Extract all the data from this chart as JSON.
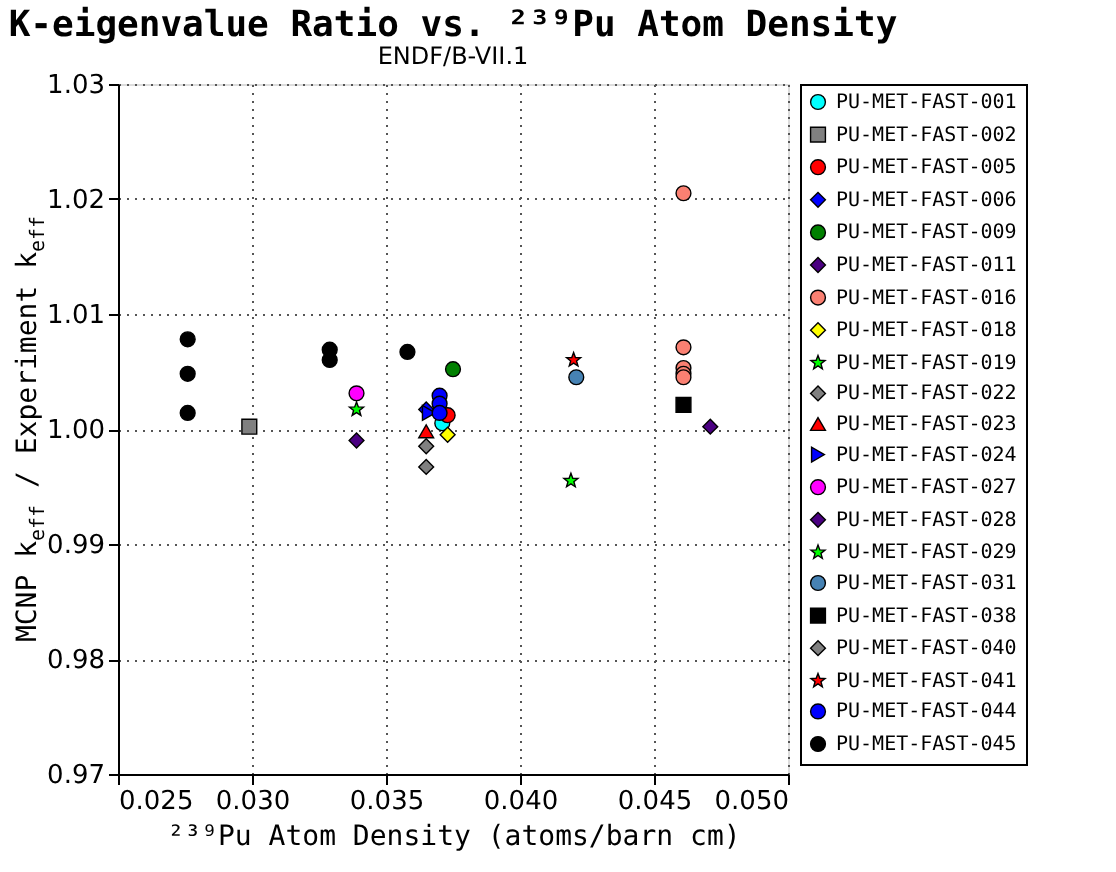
{
  "chart_data": {
    "type": "scatter",
    "title": "K-eigenvalue Ratio vs. ²³⁹Pu Atom Density",
    "subtitle": "ENDF/B-VII.1",
    "xlabel": "²³⁹Pu Atom Density (atoms/barn cm)",
    "ylabel": "MCNP k$_{eff}$ / Experiment k$_{eff}$",
    "xlim": [
      0.025,
      0.05
    ],
    "xticks": [
      0.025,
      {
        "value": 0.03,
        "label": "0.030"
      },
      0.035,
      {
        "value": 0.04,
        "label": "0.040"
      },
      0.045,
      {
        "value": 0.05,
        "label": "0.050"
      }
    ],
    "ylim": [
      0.97,
      1.03
    ],
    "yticks": [
      0.97,
      0.98,
      0.99,
      {
        "value": 1.0,
        "label": "1.00"
      },
      1.01,
      1.02,
      1.03
    ],
    "grid": true,
    "legend": "right",
    "series": [
      {
        "name": "PU-MET-FAST-001",
        "color": "#00ffff",
        "marker": "circle",
        "x": [
          0.0371
        ],
        "values": [
          1.0005
        ]
      },
      {
        "name": "PU-MET-FAST-002",
        "color": "#808080",
        "marker": "square",
        "x": [
          0.0299
        ],
        "values": [
          1.0002
        ]
      },
      {
        "name": "PU-MET-FAST-005",
        "color": "#ff0000",
        "x": [
          0.0373
        ],
        "values": [
          1.0012
        ]
      },
      {
        "name": "PU-MET-FAST-006",
        "color": "#0000ff",
        "marker": "diamond",
        "x": [
          0.0365
        ],
        "values": [
          1.0017
        ]
      },
      {
        "name": "PU-MET-FAST-009",
        "color": "#008000",
        "x": [
          0.0375
        ],
        "values": [
          1.0052
        ]
      },
      {
        "name": "PU-MET-FAST-011",
        "color": "#4b0082",
        "marker": "diamond",
        "x": [
          0.0471
        ],
        "values": [
          1.0002
        ]
      },
      {
        "name": "PU-MET-FAST-016",
        "color": "#fa8072",
        "x": [
          0.0461,
          0.0461,
          0.0461,
          0.0461,
          0.0461
        ],
        "values": [
          1.0205,
          1.0071,
          1.0053,
          1.0048,
          1.0045
        ]
      },
      {
        "name": "PU-MET-FAST-018",
        "color": "#ffff00",
        "marker": "diamond",
        "x": [
          0.0373
        ],
        "values": [
          0.9995
        ]
      },
      {
        "name": "PU-MET-FAST-019",
        "color": "#00ff00",
        "marker": "star",
        "x": [
          0.0339
        ],
        "values": [
          1.0017
        ]
      },
      {
        "name": "PU-MET-FAST-022",
        "color": "#808080",
        "marker": "diamond",
        "x": [
          0.0365
        ],
        "values": [
          0.9985
        ]
      },
      {
        "name": "PU-MET-FAST-023",
        "color": "#ff0000",
        "marker": "triangle",
        "x": [
          0.0365
        ],
        "values": [
          0.9998
        ]
      },
      {
        "name": "PU-MET-FAST-024",
        "color": "#0000ff",
        "marker": "triangle-right",
        "x": [
          0.0366
        ],
        "values": [
          1.0014
        ]
      },
      {
        "name": "PU-MET-FAST-027",
        "color": "#ff00ff",
        "x": [
          0.0339
        ],
        "values": [
          1.0031
        ]
      },
      {
        "name": "PU-MET-FAST-028",
        "color": "#4b0082",
        "marker": "diamond",
        "x": [
          0.0339
        ],
        "values": [
          0.999
        ]
      },
      {
        "name": "PU-MET-FAST-029",
        "color": "#00ff00",
        "marker": "star",
        "x": [
          0.0419
        ],
        "values": [
          0.9955
        ]
      },
      {
        "name": "PU-MET-FAST-031",
        "color": "#4682b4",
        "x": [
          0.0421
        ],
        "values": [
          1.0045
        ]
      },
      {
        "name": "PU-MET-FAST-038",
        "color": "#000000",
        "marker": "square",
        "x": [
          0.0461
        ],
        "values": [
          1.0021
        ]
      },
      {
        "name": "PU-MET-FAST-040",
        "color": "#808080",
        "marker": "diamond",
        "x": [
          0.0365
        ],
        "values": [
          0.9967
        ]
      },
      {
        "name": "PU-MET-FAST-041",
        "color": "#ff0000",
        "marker": "star",
        "x": [
          0.042
        ],
        "values": [
          1.006
        ]
      },
      {
        "name": "PU-MET-FAST-044",
        "color": "#0000ff",
        "marker": "circle",
        "x": [
          0.037,
          0.037,
          0.037
        ],
        "values": [
          1.0029,
          1.0022,
          1.0014
        ]
      },
      {
        "name": "PU-MET-FAST-045",
        "color": "#000000",
        "x": [
          0.0276,
          0.0276,
          0.0276,
          0.0329,
          0.0329,
          0.0358
        ],
        "values": [
          1.0078,
          1.0048,
          1.0014,
          1.0069,
          1.006,
          1.0067
        ]
      }
    ]
  }
}
